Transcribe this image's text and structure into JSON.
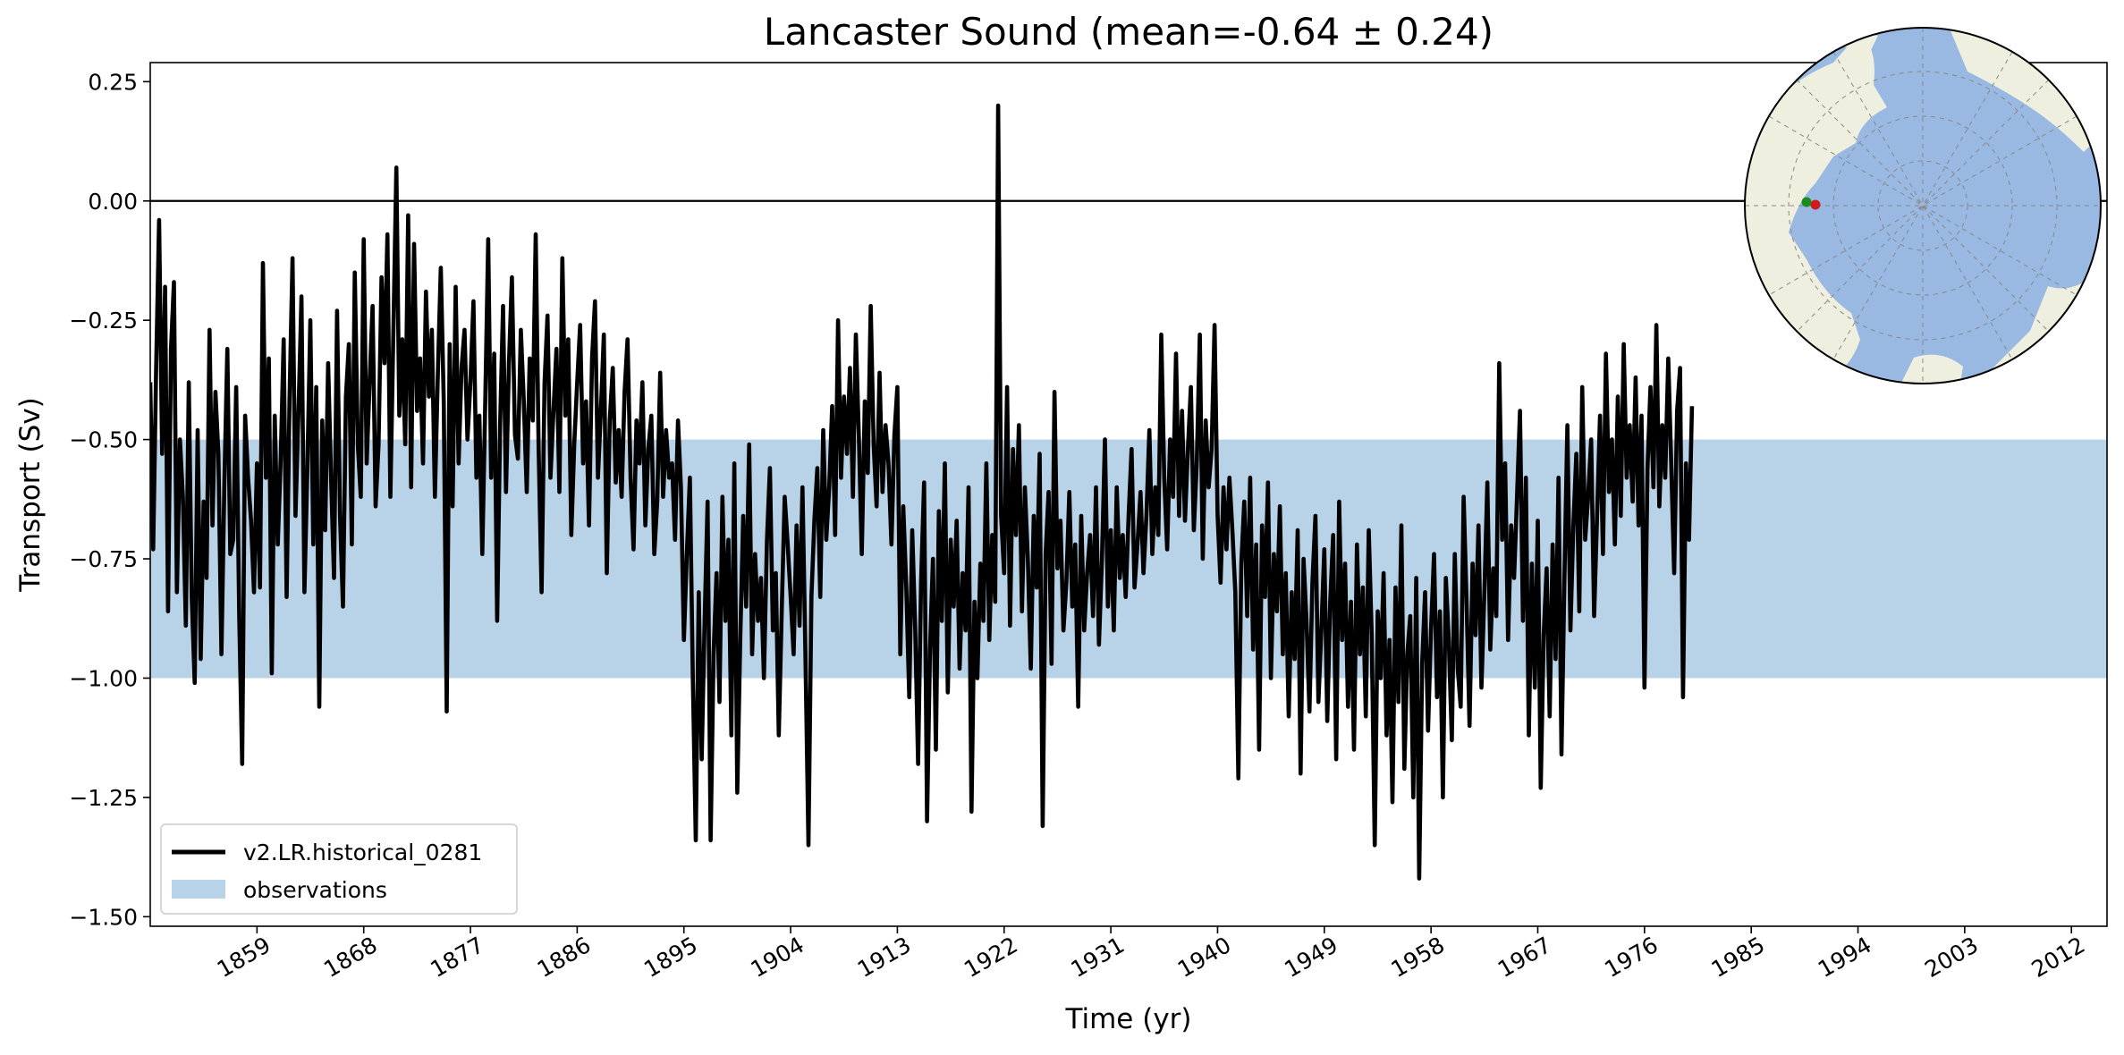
{
  "chart_data": {
    "type": "line",
    "title": "Lancaster Sound (mean=-0.64 ± 0.24)",
    "xlabel": "Time (yr)",
    "ylabel": "Transport (Sv)",
    "xlim": [
      1850,
      2015
    ],
    "ylim": [
      -1.52,
      0.29
    ],
    "x_ticks": [
      1859,
      1868,
      1877,
      1886,
      1895,
      1904,
      1913,
      1922,
      1931,
      1940,
      1949,
      1958,
      1967,
      1976,
      1985,
      1994,
      2003,
      2012
    ],
    "y_ticks": [
      0.25,
      0.0,
      -0.25,
      -0.5,
      -0.75,
      -1.0,
      -1.25,
      -1.5
    ],
    "y_tick_labels": [
      "0.25",
      "0.00",
      "−0.25",
      "−0.50",
      "−0.75",
      "−1.00",
      "−1.25",
      "−1.50"
    ],
    "zero_line": 0.0,
    "observation_band": [
      -1.0,
      -0.5
    ],
    "legend_position": "lower-left",
    "series": [
      {
        "name": "v2.LR.historical_0281",
        "color": "#000000",
        "x_start": 1850.0,
        "x_step": 0.25,
        "values": [
          -0.38,
          -0.73,
          -0.35,
          -0.04,
          -0.53,
          -0.18,
          -0.86,
          -0.31,
          -0.17,
          -0.82,
          -0.5,
          -0.62,
          -0.89,
          -0.38,
          -0.83,
          -1.01,
          -0.48,
          -0.96,
          -0.63,
          -0.79,
          -0.27,
          -0.68,
          -0.4,
          -0.53,
          -0.95,
          -0.59,
          -0.31,
          -0.74,
          -0.71,
          -0.39,
          -0.87,
          -1.18,
          -0.45,
          -0.58,
          -0.67,
          -0.82,
          -0.55,
          -0.81,
          -0.13,
          -0.58,
          -0.33,
          -0.99,
          -0.45,
          -0.72,
          -0.54,
          -0.29,
          -0.83,
          -0.41,
          -0.12,
          -0.66,
          -0.44,
          -0.2,
          -0.82,
          -0.56,
          -0.25,
          -0.72,
          -0.39,
          -1.06,
          -0.46,
          -0.69,
          -0.34,
          -0.58,
          -0.79,
          -0.23,
          -0.66,
          -0.85,
          -0.41,
          -0.3,
          -0.72,
          -0.15,
          -0.51,
          -0.62,
          -0.08,
          -0.55,
          -0.38,
          -0.22,
          -0.64,
          -0.51,
          -0.16,
          -0.34,
          -0.07,
          -0.62,
          -0.28,
          0.07,
          -0.45,
          -0.29,
          -0.51,
          -0.03,
          -0.6,
          -0.09,
          -0.44,
          -0.33,
          -0.55,
          -0.19,
          -0.41,
          -0.27,
          -0.62,
          -0.36,
          -0.14,
          -0.42,
          -1.07,
          -0.3,
          -0.64,
          -0.18,
          -0.55,
          -0.35,
          -0.27,
          -0.5,
          -0.38,
          -0.21,
          -0.58,
          -0.45,
          -0.74,
          -0.42,
          -0.08,
          -0.58,
          -0.32,
          -0.88,
          -0.47,
          -0.22,
          -0.61,
          -0.34,
          -0.16,
          -0.49,
          -0.54,
          -0.27,
          -0.42,
          -0.61,
          -0.33,
          -0.46,
          -0.07,
          -0.52,
          -0.82,
          -0.38,
          -0.24,
          -0.58,
          -0.44,
          -0.31,
          -0.61,
          -0.12,
          -0.45,
          -0.29,
          -0.7,
          -0.51,
          -0.38,
          -0.26,
          -0.55,
          -0.42,
          -0.68,
          -0.33,
          -0.21,
          -0.58,
          -0.44,
          -0.28,
          -0.78,
          -0.46,
          -0.35,
          -0.59,
          -0.48,
          -0.62,
          -0.4,
          -0.29,
          -0.58,
          -0.73,
          -0.46,
          -0.55,
          -0.38,
          -0.68,
          -0.52,
          -0.45,
          -0.74,
          -0.63,
          -0.36,
          -0.62,
          -0.48,
          -0.58,
          -0.55,
          -0.71,
          -0.46,
          -0.6,
          -0.92,
          -0.74,
          -0.58,
          -1.0,
          -1.34,
          -0.82,
          -1.17,
          -0.88,
          -0.63,
          -1.34,
          -0.95,
          -0.78,
          -1.05,
          -0.62,
          -0.88,
          -0.71,
          -1.12,
          -0.55,
          -1.24,
          -0.92,
          -0.66,
          -0.85,
          -0.51,
          -0.95,
          -0.74,
          -0.88,
          -0.79,
          -1.0,
          -0.71,
          -0.56,
          -0.9,
          -0.78,
          -1.12,
          -0.86,
          -0.62,
          -0.72,
          -0.83,
          -0.95,
          -0.68,
          -0.89,
          -0.6,
          -0.95,
          -1.35,
          -0.83,
          -0.67,
          -0.56,
          -0.83,
          -0.48,
          -0.71,
          -0.6,
          -0.43,
          -0.7,
          -0.25,
          -0.58,
          -0.41,
          -0.53,
          -0.35,
          -0.62,
          -0.28,
          -0.49,
          -0.74,
          -0.42,
          -0.57,
          -0.22,
          -0.51,
          -0.64,
          -0.36,
          -0.61,
          -0.47,
          -0.55,
          -0.72,
          -0.49,
          -0.39,
          -0.95,
          -0.64,
          -0.81,
          -1.04,
          -0.69,
          -0.89,
          -1.18,
          -0.8,
          -0.59,
          -1.3,
          -0.94,
          -0.75,
          -1.15,
          -0.65,
          -0.88,
          -0.55,
          -1.03,
          -0.71,
          -0.85,
          -0.67,
          -0.98,
          -0.78,
          -0.9,
          -0.6,
          -1.28,
          -0.84,
          -1.0,
          -0.76,
          -0.88,
          -0.55,
          -0.92,
          -0.7,
          -0.84,
          0.2,
          -0.66,
          -0.78,
          -0.39,
          -0.89,
          -0.52,
          -0.7,
          -0.47,
          -0.86,
          -0.6,
          -0.75,
          -0.98,
          -0.66,
          -0.81,
          -0.53,
          -1.31,
          -0.74,
          -0.61,
          -0.97,
          -0.4,
          -0.77,
          -0.67,
          -0.9,
          -0.8,
          -0.61,
          -0.85,
          -0.72,
          -1.06,
          -0.66,
          -0.9,
          -0.78,
          -0.7,
          -0.87,
          -0.6,
          -0.93,
          -0.75,
          -0.5,
          -0.85,
          -0.69,
          -0.9,
          -0.6,
          -0.79,
          -0.7,
          -0.83,
          -0.66,
          -0.52,
          -0.81,
          -0.72,
          -0.61,
          -0.78,
          -0.66,
          -0.48,
          -0.74,
          -0.6,
          -0.7,
          -0.28,
          -0.58,
          -0.73,
          -0.5,
          -0.62,
          -0.32,
          -0.66,
          -0.44,
          -0.67,
          -0.52,
          -0.39,
          -0.69,
          -0.55,
          -0.28,
          -0.75,
          -0.46,
          -0.6,
          -0.52,
          -0.26,
          -0.66,
          -0.8,
          -0.6,
          -0.73,
          -0.58,
          -0.69,
          -0.82,
          -1.21,
          -0.76,
          -0.63,
          -0.87,
          -0.58,
          -0.94,
          -0.72,
          -1.15,
          -0.68,
          -0.83,
          -0.59,
          -1.0,
          -0.74,
          -0.86,
          -0.64,
          -0.95,
          -0.78,
          -1.08,
          -0.82,
          -0.96,
          -0.69,
          -1.2,
          -0.75,
          -0.88,
          -1.07,
          -0.8,
          -0.66,
          -1.05,
          -0.9,
          -0.73,
          -1.09,
          -0.84,
          -0.7,
          -1.17,
          -0.63,
          -0.92,
          -0.76,
          -1.06,
          -0.84,
          -1.15,
          -0.72,
          -0.95,
          -0.81,
          -1.08,
          -0.69,
          -0.91,
          -1.35,
          -0.86,
          -1.0,
          -0.78,
          -1.12,
          -0.92,
          -1.26,
          -0.81,
          -1.05,
          -0.68,
          -1.19,
          -0.95,
          -0.87,
          -1.25,
          -0.79,
          -1.42,
          -0.97,
          -0.82,
          -1.11,
          -0.9,
          -0.74,
          -1.04,
          -0.86,
          -1.25,
          -0.79,
          -0.92,
          -1.13,
          -0.74,
          -0.98,
          -1.06,
          -0.62,
          -0.84,
          -1.1,
          -0.76,
          -0.91,
          -0.68,
          -1.02,
          -0.82,
          -0.59,
          -0.94,
          -0.77,
          -0.87,
          -0.34,
          -0.71,
          -0.55,
          -0.92,
          -0.68,
          -0.79,
          -0.62,
          -0.44,
          -0.88,
          -0.58,
          -1.12,
          -0.76,
          -1.02,
          -0.67,
          -1.23,
          -0.91,
          -0.77,
          -1.08,
          -0.72,
          -0.96,
          -0.58,
          -1.16,
          -0.79,
          -0.47,
          -0.9,
          -0.68,
          -0.53,
          -0.86,
          -0.39,
          -0.71,
          -0.62,
          -0.5,
          -0.87,
          -0.66,
          -0.45,
          -0.74,
          -0.32,
          -0.61,
          -0.5,
          -0.72,
          -0.41,
          -0.66,
          -0.3,
          -0.58,
          -0.47,
          -0.63,
          -0.37,
          -0.68,
          -0.45,
          -1.02,
          -0.56,
          -0.39,
          -0.6,
          -0.26,
          -0.64,
          -0.47,
          -0.58,
          -0.33,
          -0.55,
          -0.78,
          -0.44,
          -0.35,
          -1.04,
          -0.55,
          -0.71,
          -0.43
        ]
      }
    ],
    "legend": [
      {
        "label": "v2.LR.historical_0281",
        "color": "#000000",
        "kind": "line"
      },
      {
        "label": "observations",
        "color": "#b8d3e8",
        "kind": "patch"
      }
    ],
    "inset_map": {
      "projection": "north-polar-stereographic",
      "ocean_color": "#99b8e2",
      "land_color": "#efefdf",
      "markers": [
        {
          "color": "#1a8c1a"
        },
        {
          "color": "#d11c1c"
        }
      ]
    }
  }
}
